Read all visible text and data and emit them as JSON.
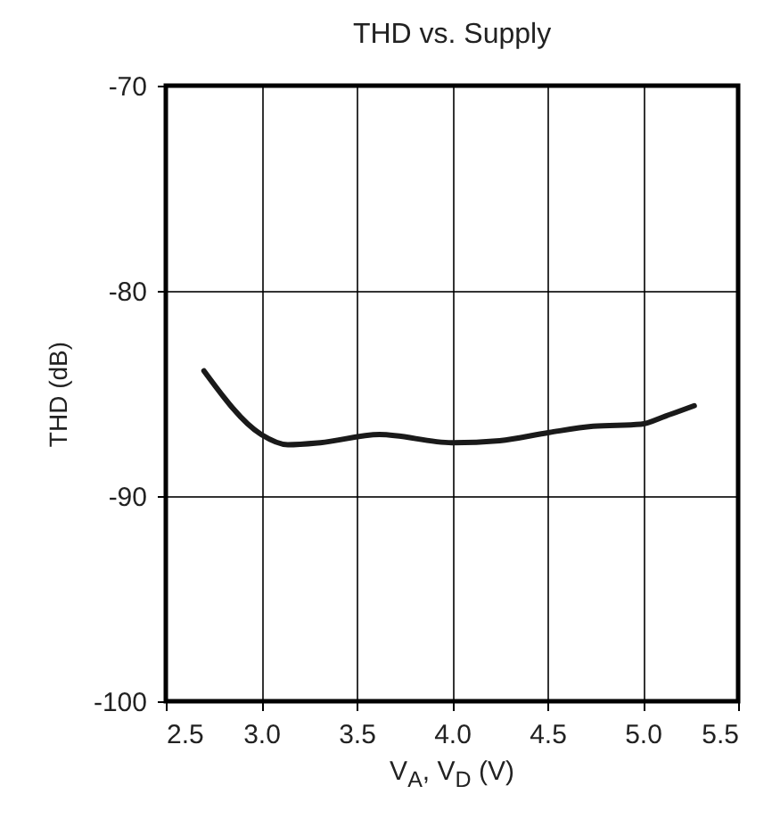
{
  "chart_data": {
    "type": "line",
    "title": "THD vs. Supply",
    "xlabel": "V$_{A}$, V$_{D}$ (V)",
    "ylabel": "THD (dB)",
    "x": [
      2.7,
      3.0,
      3.14,
      3.31,
      3.62,
      4.0,
      4.25,
      4.51,
      4.74,
      4.99,
      5.12,
      5.27
    ],
    "series": [
      {
        "color": "#1a1a1a",
        "values": [
          -83.9,
          -87.0,
          -87.5,
          -87.4,
          -87.0,
          -87.4,
          -87.3,
          -86.9,
          -86.6,
          -86.5,
          -86.1,
          -85.6
        ]
      }
    ],
    "xlim": [
      2.5,
      5.5
    ],
    "xticks": [
      2.5,
      {
        "value": 3,
        "label": "3.0"
      },
      3.5,
      {
        "value": 4,
        "label": "4.0"
      },
      4.5,
      {
        "value": 5,
        "label": "5.0"
      },
      5.5
    ],
    "ylim": [
      -100,
      -70
    ],
    "yticks": [
      -100,
      -90,
      -80,
      -70
    ],
    "grid": true,
    "line_style": "solid"
  }
}
